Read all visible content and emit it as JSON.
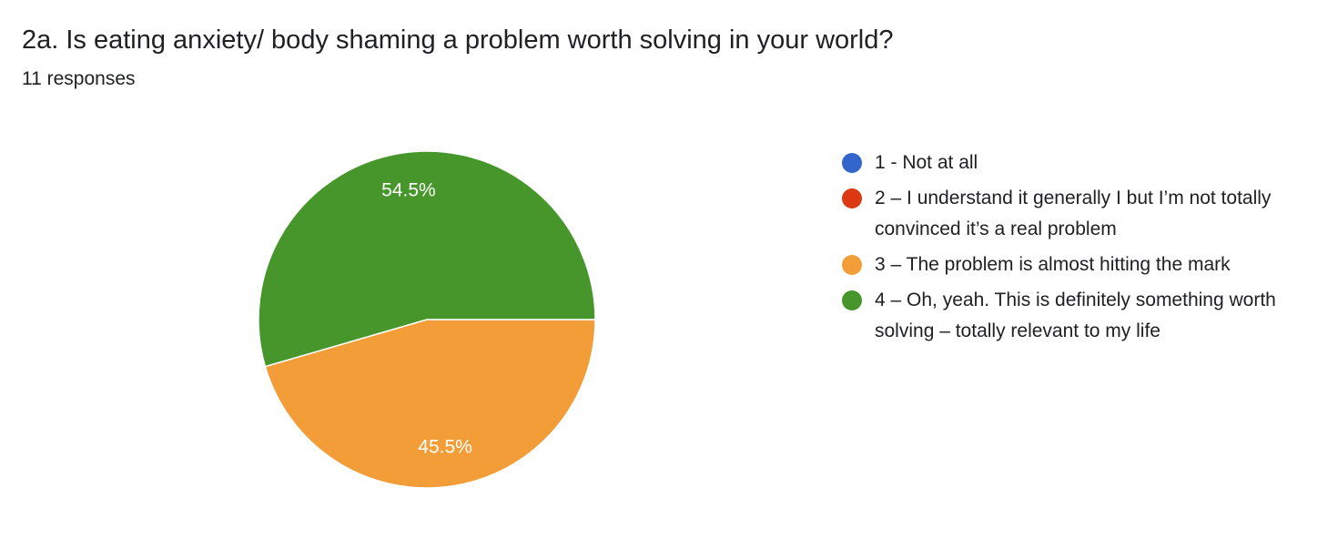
{
  "header": {
    "title": "2a. Is eating anxiety/ body shaming a problem worth solving in your world?",
    "subtitle": "11 responses"
  },
  "chart_data": {
    "type": "pie",
    "categories": [
      "1 - Not at all",
      "2 – I understand it generally I but I’m not totally convinced it’s a real problem",
      "3 – The problem is almost hitting the mark",
      "4 – Oh, yeah. This is definitely something worth solving – totally relevant to my life"
    ],
    "values": [
      0,
      0,
      45.5,
      54.5
    ],
    "value_labels": [
      "",
      "",
      "45.5%",
      "54.5%"
    ],
    "colors": [
      "#3366cc",
      "#dc3912",
      "#f29d38",
      "#46962b"
    ],
    "legend_position": "right"
  }
}
